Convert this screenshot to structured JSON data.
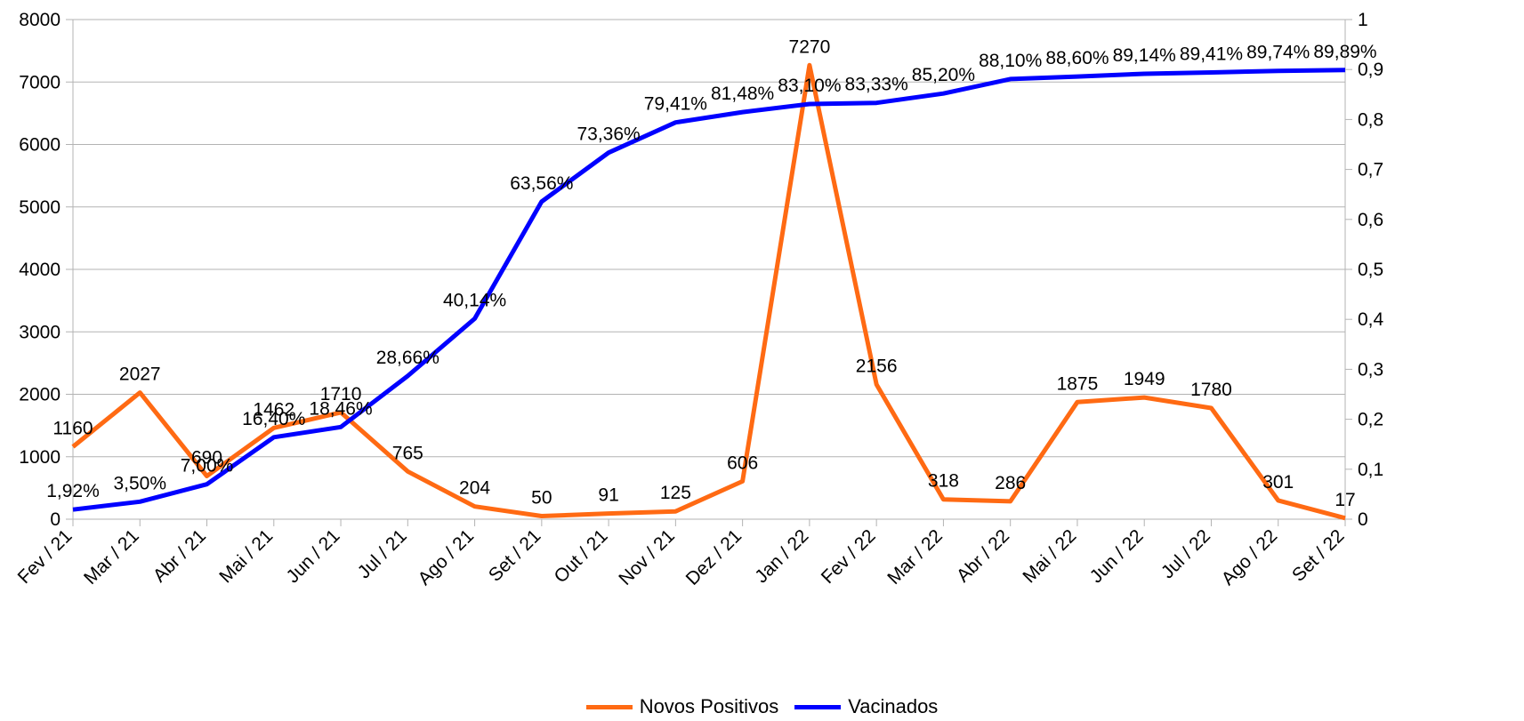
{
  "chart_data": {
    "type": "line",
    "title": "",
    "xlabel": "",
    "ylabel": "",
    "categories": [
      "Fev / 21",
      "Mar / 21",
      "Abr / 21",
      "Mai / 21",
      "Jun / 21",
      "Jul / 21",
      "Ago / 21",
      "Set / 21",
      "Out / 21",
      "Nov / 21",
      "Dez / 21",
      "Jan / 22",
      "Fev / 22",
      "Mar / 22",
      "Abr / 22",
      "Mai / 22",
      "Jun / 22",
      "Jul / 22",
      "Ago / 22",
      "Set / 22"
    ],
    "ylim_left": [
      0,
      8000
    ],
    "ylim_right": [
      0,
      1
    ],
    "left_ticks": [
      "0",
      "1000",
      "2000",
      "3000",
      "4000",
      "5000",
      "6000",
      "7000",
      "8000"
    ],
    "right_ticks": [
      "0",
      "0,1",
      "0,2",
      "0,3",
      "0,4",
      "0,5",
      "0,6",
      "0,7",
      "0,8",
      "0,9",
      "1"
    ],
    "grid": true,
    "legend_position": "bottom",
    "series": [
      {
        "name": "Novos Positivos",
        "axis": "left",
        "color": "#ff6a13",
        "values": [
          1160,
          2027,
          690,
          1462,
          1710,
          765,
          204,
          50,
          91,
          125,
          606,
          7270,
          2156,
          318,
          286,
          1875,
          1949,
          1780,
          301,
          17
        ],
        "labels": [
          "1160",
          "2027",
          "690",
          "1462",
          "1710",
          "765",
          "204",
          "50",
          "91",
          "125",
          "606",
          "7270",
          "2156",
          "318",
          "286",
          "1875",
          "1949",
          "1780",
          "301",
          "17"
        ]
      },
      {
        "name": "Vacinados",
        "axis": "right",
        "color": "#0000ff",
        "values": [
          0.0192,
          0.035,
          0.07,
          0.164,
          0.1846,
          0.2866,
          0.4014,
          0.6356,
          0.7336,
          0.7941,
          0.8148,
          0.831,
          0.8333,
          0.852,
          0.881,
          0.886,
          0.8914,
          0.8941,
          0.8974,
          0.8989
        ],
        "labels": [
          "1,92%",
          "3,50%",
          "7,00%",
          "16,40%",
          "18,46%",
          "28,66%",
          "40,14%",
          "63,56%",
          "73,36%",
          "79,41%",
          "81,48%",
          "83,10%",
          "83,33%",
          "85,20%",
          "88,10%",
          "88,60%",
          "89,14%",
          "89,41%",
          "89,74%",
          "89,89%"
        ]
      }
    ]
  },
  "legend": {
    "items": [
      "Novos Positivos",
      "Vacinados"
    ]
  }
}
